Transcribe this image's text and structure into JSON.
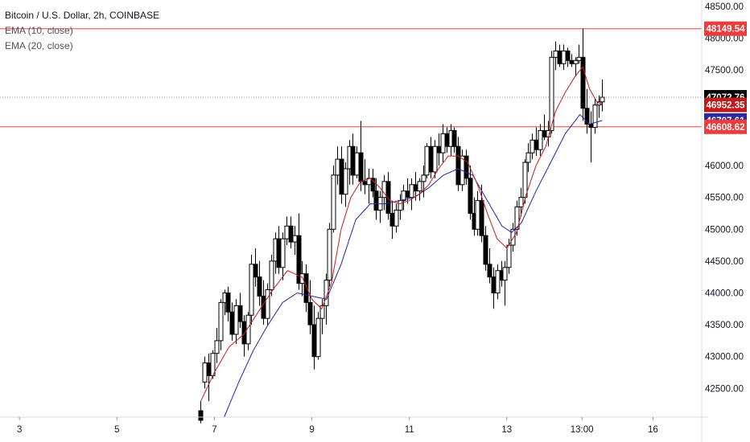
{
  "legend": {
    "symbol": "Bitcoin / U.S. Dollar, 2h, COINBASE",
    "ema10": "EMA (10, close)",
    "ema20": "EMA (20, close)"
  },
  "colors": {
    "candle_up_fill": "#ffffff",
    "candle_down_fill": "#000000",
    "candle_outline": "#000000",
    "ema10": "#c71f1f",
    "ema20": "#2424a8",
    "hline": "#ef3b3b",
    "last_price_line": "#888888",
    "tag_high_bg": "#ef3b3b",
    "tag_last_bg": "#000000",
    "tag_ema10_bg": "#c21a1a",
    "tag_ema20_bg": "#2b2b9e",
    "tag_low_bg": "#ef3b3b"
  },
  "chart_data": {
    "type": "candlestick",
    "ylim": [
      42050,
      48600
    ],
    "x_range_days": [
      2.6,
      17.0
    ],
    "x_ticks": [
      {
        "day": 3,
        "label": "3"
      },
      {
        "day": 5,
        "label": "5"
      },
      {
        "day": 7,
        "label": "7"
      },
      {
        "day": 9,
        "label": "9"
      },
      {
        "day": 11,
        "label": "11"
      },
      {
        "day": 13,
        "label": "13"
      },
      {
        "day": 14.542,
        "label": "13:00"
      },
      {
        "day": 16,
        "label": "16"
      }
    ],
    "y_ticks": [
      {
        "value": 48500,
        "label": "48500.00"
      },
      {
        "value": 48000,
        "label": "48000.00"
      },
      {
        "value": 47500,
        "label": "47500.00"
      },
      {
        "value": 46000,
        "label": "46000.00"
      },
      {
        "value": 45500,
        "label": "45500.00"
      },
      {
        "value": 45000,
        "label": "45000.00"
      },
      {
        "value": 44500,
        "label": "44500.00"
      },
      {
        "value": 44000,
        "label": "44000.00"
      },
      {
        "value": 43500,
        "label": "43500.00"
      },
      {
        "value": 43000,
        "label": "43000.00"
      },
      {
        "value": 42500,
        "label": "42500.00"
      }
    ],
    "horizontal_lines": [
      {
        "value": 48149.54,
        "label": "48149.54",
        "role": "high"
      },
      {
        "value": 46608.62,
        "label": "46608.62",
        "role": "low"
      }
    ],
    "price_tags": [
      {
        "value": 48149.54,
        "label": "48149.54",
        "role": "high"
      },
      {
        "value": 47072.76,
        "label": "47072.76",
        "role": "last"
      },
      {
        "value": 46952.35,
        "label": "46952.35",
        "role": "ema10"
      },
      {
        "value": 46707.61,
        "label": "46707.61",
        "role": "ema20"
      },
      {
        "value": 46608.62,
        "label": "46608.62",
        "role": "low"
      }
    ],
    "last_price": 47072.76,
    "candles": [
      [
        6.72,
        42150,
        42300,
        41950,
        42000
      ],
      [
        6.8,
        42600,
        43000,
        42500,
        42900
      ],
      [
        6.88,
        42900,
        43050,
        42300,
        42700
      ],
      [
        6.96,
        42700,
        43100,
        42650,
        43050
      ],
      [
        7.04,
        43050,
        43450,
        42900,
        43250
      ],
      [
        7.12,
        43250,
        43900,
        43100,
        43850
      ],
      [
        7.2,
        43850,
        44050,
        43650,
        44000
      ],
      [
        7.28,
        44000,
        44100,
        43550,
        43700
      ],
      [
        7.36,
        43700,
        43850,
        43250,
        43350
      ],
      [
        7.44,
        43350,
        43900,
        43200,
        43800
      ],
      [
        7.52,
        43800,
        44000,
        43450,
        43550
      ],
      [
        7.6,
        43550,
        43650,
        43000,
        43200
      ],
      [
        7.68,
        43200,
        43700,
        43100,
        43650
      ],
      [
        7.76,
        43650,
        44600,
        43500,
        44450
      ],
      [
        7.84,
        44450,
        44700,
        44100,
        44250
      ],
      [
        7.92,
        44250,
        44500,
        43800,
        43950
      ],
      [
        8.0,
        43950,
        44200,
        43500,
        43600
      ],
      [
        8.08,
        43600,
        44150,
        43500,
        44050
      ],
      [
        8.16,
        44050,
        44600,
        43950,
        44500
      ],
      [
        8.24,
        44500,
        44950,
        44300,
        44850
      ],
      [
        8.32,
        44850,
        45050,
        44300,
        44400
      ],
      [
        8.4,
        44400,
        44950,
        44200,
        44850
      ],
      [
        8.48,
        44850,
        45200,
        44750,
        45050
      ],
      [
        8.56,
        45050,
        45200,
        44700,
        44800
      ],
      [
        8.64,
        44800,
        45050,
        44600,
        44900
      ],
      [
        8.72,
        44900,
        45250,
        44050,
        44150
      ],
      [
        8.8,
        44150,
        44500,
        43950,
        44300
      ],
      [
        8.88,
        44300,
        44450,
        43700,
        43850
      ],
      [
        8.96,
        43850,
        44200,
        43350,
        43500
      ],
      [
        9.04,
        43500,
        43800,
        42800,
        43000
      ],
      [
        9.12,
        43000,
        43700,
        42950,
        43600
      ],
      [
        9.2,
        43600,
        43900,
        43350,
        43800
      ],
      [
        9.28,
        43800,
        44300,
        43500,
        44200
      ],
      [
        9.36,
        44200,
        45100,
        44100,
        45000
      ],
      [
        9.44,
        45000,
        46000,
        44950,
        45850
      ],
      [
        9.52,
        45850,
        46300,
        45700,
        46100
      ],
      [
        9.6,
        46100,
        46300,
        45400,
        45550
      ],
      [
        9.68,
        45550,
        46050,
        45350,
        45950
      ],
      [
        9.76,
        45950,
        46400,
        45700,
        46300
      ],
      [
        9.84,
        46300,
        46500,
        45700,
        45850
      ],
      [
        9.92,
        45850,
        46300,
        45800,
        46200
      ],
      [
        10.0,
        46200,
        46700,
        45600,
        45750
      ],
      [
        10.08,
        45750,
        46100,
        45550,
        45700
      ],
      [
        10.16,
        45700,
        45950,
        45400,
        45800
      ],
      [
        10.24,
        45800,
        45950,
        45500,
        45600
      ],
      [
        10.32,
        45600,
        45800,
        45150,
        45300
      ],
      [
        10.4,
        45300,
        45600,
        45100,
        45500
      ],
      [
        10.48,
        45500,
        45850,
        45300,
        45750
      ],
      [
        10.56,
        45750,
        45900,
        45150,
        45250
      ],
      [
        10.64,
        45250,
        45450,
        44850,
        45050
      ],
      [
        10.72,
        45050,
        45400,
        44950,
        45300
      ],
      [
        10.8,
        45300,
        45550,
        45150,
        45450
      ],
      [
        10.88,
        45450,
        45700,
        45300,
        45600
      ],
      [
        10.96,
        45600,
        45800,
        45400,
        45500
      ],
      [
        11.04,
        45500,
        45800,
        45300,
        45700
      ],
      [
        11.12,
        45700,
        45900,
        45450,
        45600
      ],
      [
        11.2,
        45600,
        45800,
        45450,
        45750
      ],
      [
        11.28,
        45750,
        46000,
        45500,
        45850
      ],
      [
        11.36,
        45850,
        46350,
        45800,
        46300
      ],
      [
        11.44,
        46300,
        46450,
        45800,
        45900
      ],
      [
        11.52,
        45900,
        46400,
        45800,
        46300
      ],
      [
        11.6,
        46300,
        46500,
        46000,
        46200
      ],
      [
        11.68,
        46200,
        46650,
        46050,
        46500
      ],
      [
        11.76,
        46500,
        46600,
        46200,
        46300
      ],
      [
        11.84,
        46300,
        46650,
        46150,
        46550
      ],
      [
        11.92,
        46550,
        46600,
        46200,
        46300
      ],
      [
        12.0,
        46300,
        46450,
        45600,
        45700
      ],
      [
        12.08,
        45700,
        46250,
        45600,
        46150
      ],
      [
        12.16,
        46150,
        46250,
        45700,
        45800
      ],
      [
        12.24,
        45800,
        46000,
        45150,
        45250
      ],
      [
        12.32,
        45250,
        45500,
        44900,
        45000
      ],
      [
        12.4,
        45000,
        45600,
        44900,
        45450
      ],
      [
        12.48,
        45450,
        45700,
        44800,
        44900
      ],
      [
        12.56,
        44900,
        45050,
        44350,
        44450
      ],
      [
        12.64,
        44450,
        44700,
        44150,
        44250
      ],
      [
        12.72,
        44250,
        44400,
        43750,
        44000
      ],
      [
        12.8,
        44000,
        44450,
        43900,
        44350
      ],
      [
        12.88,
        44350,
        44500,
        44100,
        44200
      ],
      [
        12.96,
        44200,
        44500,
        43800,
        44400
      ],
      [
        13.04,
        44400,
        44850,
        44300,
        44750
      ],
      [
        13.12,
        44750,
        45100,
        44650,
        45000
      ],
      [
        13.2,
        45000,
        45450,
        44900,
        45350
      ],
      [
        13.28,
        45350,
        45650,
        45200,
        45500
      ],
      [
        13.36,
        45500,
        46100,
        45400,
        46050
      ],
      [
        13.44,
        46050,
        46350,
        45900,
        46200
      ],
      [
        13.52,
        46200,
        46500,
        46100,
        46400
      ],
      [
        13.6,
        46400,
        46600,
        46150,
        46250
      ],
      [
        13.68,
        46250,
        46650,
        46150,
        46550
      ],
      [
        13.76,
        46550,
        46800,
        46400,
        46450
      ],
      [
        13.84,
        46450,
        46700,
        46300,
        46550
      ],
      [
        13.92,
        46550,
        47800,
        46500,
        47700
      ],
      [
        14.0,
        47700,
        47950,
        47500,
        47800
      ],
      [
        14.08,
        47800,
        47900,
        47550,
        47600
      ],
      [
        14.16,
        47600,
        47900,
        47500,
        47800
      ],
      [
        14.24,
        47800,
        47850,
        47550,
        47650
      ],
      [
        14.32,
        47650,
        47750,
        47550,
        47600
      ],
      [
        14.4,
        47600,
        47700,
        47400,
        47650
      ],
      [
        14.48,
        47650,
        47900,
        47600,
        47700
      ],
      [
        14.56,
        47700,
        48149.54,
        46700,
        46900
      ],
      [
        14.64,
        46900,
        47200,
        46500,
        46650
      ],
      [
        14.72,
        46650,
        46850,
        46050,
        46600
      ],
      [
        14.8,
        46600,
        47050,
        46500,
        46950
      ],
      [
        14.88,
        46950,
        47100,
        46750,
        47000
      ],
      [
        14.96,
        47000,
        47350,
        46850,
        47072.76
      ]
    ],
    "ema10": [
      [
        6.72,
        42300
      ],
      [
        7.0,
        42750
      ],
      [
        7.3,
        43150
      ],
      [
        7.6,
        43350
      ],
      [
        7.9,
        43700
      ],
      [
        8.2,
        44050
      ],
      [
        8.5,
        44350
      ],
      [
        8.8,
        44250
      ],
      [
        9.0,
        43900
      ],
      [
        9.2,
        43750
      ],
      [
        9.4,
        44150
      ],
      [
        9.6,
        45000
      ],
      [
        9.8,
        45500
      ],
      [
        10.0,
        45750
      ],
      [
        10.2,
        45800
      ],
      [
        10.4,
        45650
      ],
      [
        10.6,
        45450
      ],
      [
        10.8,
        45400
      ],
      [
        11.0,
        45450
      ],
      [
        11.2,
        45550
      ],
      [
        11.4,
        45700
      ],
      [
        11.6,
        45950
      ],
      [
        11.8,
        46150
      ],
      [
        12.0,
        46150
      ],
      [
        12.2,
        46050
      ],
      [
        12.4,
        45700
      ],
      [
        12.6,
        45250
      ],
      [
        12.8,
        44850
      ],
      [
        13.0,
        44700
      ],
      [
        13.2,
        44950
      ],
      [
        13.4,
        45550
      ],
      [
        13.6,
        46000
      ],
      [
        13.8,
        46300
      ],
      [
        14.0,
        46850
      ],
      [
        14.2,
        47150
      ],
      [
        14.4,
        47400
      ],
      [
        14.56,
        47550
      ],
      [
        14.7,
        47200
      ],
      [
        14.85,
        47000
      ],
      [
        14.96,
        46952.35
      ]
    ],
    "ema20": [
      [
        7.2,
        42050
      ],
      [
        7.5,
        42600
      ],
      [
        7.8,
        43100
      ],
      [
        8.1,
        43500
      ],
      [
        8.4,
        43850
      ],
      [
        8.7,
        44000
      ],
      [
        9.0,
        43950
      ],
      [
        9.3,
        43900
      ],
      [
        9.6,
        44450
      ],
      [
        9.9,
        45150
      ],
      [
        10.2,
        45400
      ],
      [
        10.5,
        45400
      ],
      [
        10.8,
        45450
      ],
      [
        11.1,
        45500
      ],
      [
        11.4,
        45650
      ],
      [
        11.7,
        45850
      ],
      [
        12.0,
        45950
      ],
      [
        12.3,
        45850
      ],
      [
        12.6,
        45450
      ],
      [
        12.9,
        45050
      ],
      [
        13.1,
        44950
      ],
      [
        13.3,
        45100
      ],
      [
        13.6,
        45600
      ],
      [
        13.9,
        46050
      ],
      [
        14.2,
        46500
      ],
      [
        14.5,
        46800
      ],
      [
        14.7,
        46650
      ],
      [
        14.96,
        46707.61
      ]
    ]
  }
}
